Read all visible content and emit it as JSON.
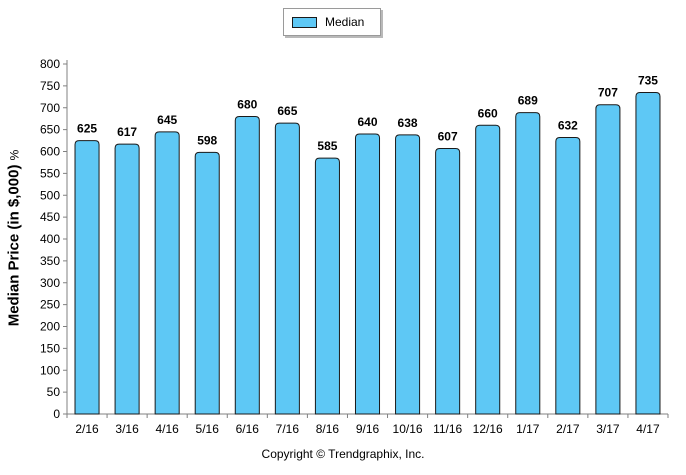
{
  "legend": {
    "label": "Median",
    "swatch_color": "#5ec8f5"
  },
  "copyright": "Copyright © Trendgraphix, Inc.",
  "chart_data": {
    "type": "bar",
    "ylabel": "Median Price (in $,000)",
    "ylabel_unit": "%",
    "xlabel": "",
    "ylim": [
      0,
      800
    ],
    "ytick_step": 50,
    "categories": [
      "2/16",
      "3/16",
      "4/16",
      "5/16",
      "6/16",
      "7/16",
      "8/16",
      "9/16",
      "10/16",
      "11/16",
      "12/16",
      "1/17",
      "2/17",
      "3/17",
      "4/17"
    ],
    "series": [
      {
        "name": "Median",
        "values": [
          625,
          617,
          645,
          598,
          680,
          665,
          585,
          640,
          638,
          607,
          660,
          689,
          632,
          707,
          735
        ]
      }
    ],
    "bar_color": "#5ec8f5",
    "bar_edge_color": "#1a1a1a",
    "grid": false,
    "legend_position": "top-center",
    "data_labels": true
  }
}
